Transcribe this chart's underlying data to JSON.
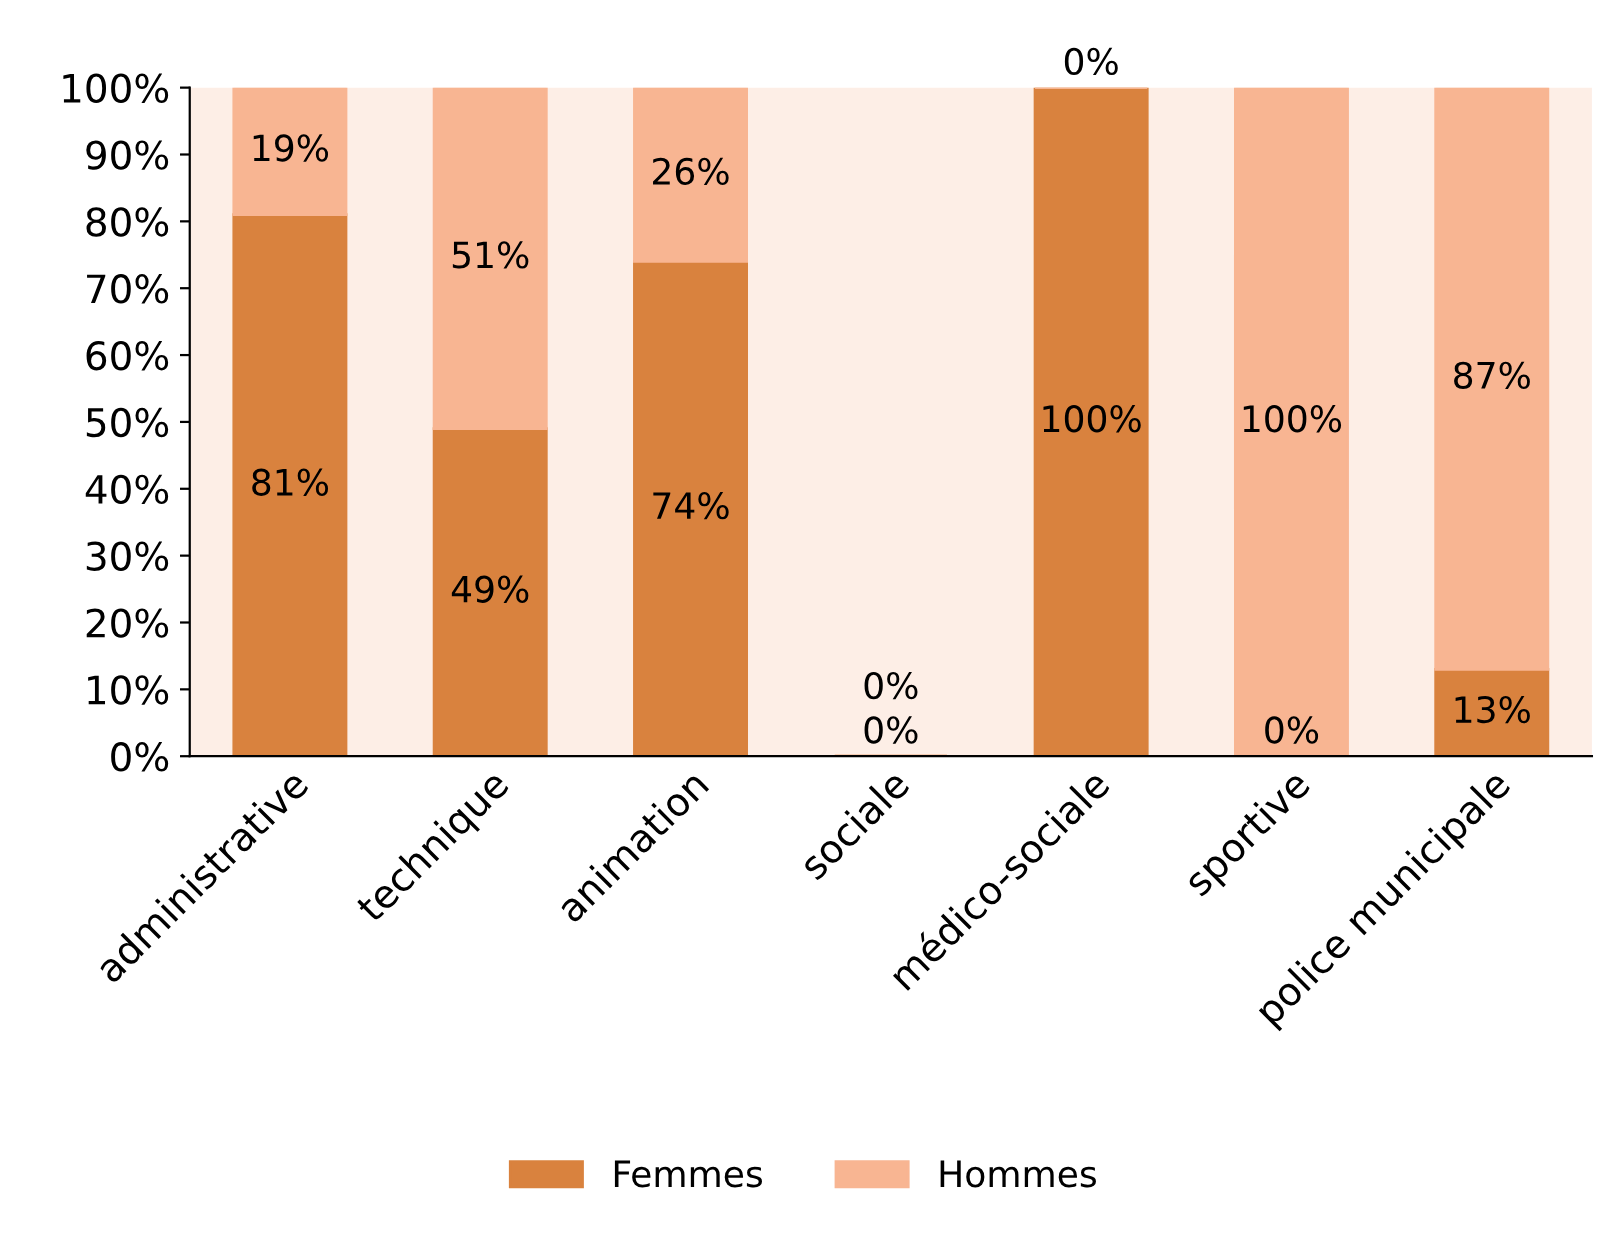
{
  "chart_data": {
    "type": "bar",
    "stacked": true,
    "categories": [
      "administrative",
      "technique",
      "animation",
      "sociale",
      "médico-sociale",
      "sportive",
      "police municipale"
    ],
    "series": [
      {
        "name": "Femmes",
        "color": "#d9823e",
        "values": [
          81,
          49,
          74,
          0,
          100,
          0,
          13
        ],
        "value_labels": [
          "81%",
          "49%",
          "74%",
          "0%",
          "100%",
          "0%",
          "13%"
        ]
      },
      {
        "name": "Hommes",
        "color": "#f8b592",
        "values": [
          19,
          51,
          26,
          0,
          0,
          100,
          87
        ],
        "value_labels": [
          "19%",
          "51%",
          "26%",
          "0%",
          "0%",
          "100%",
          "87%"
        ]
      }
    ],
    "ylim": [
      0,
      100
    ],
    "yticks": [
      {
        "value": 0,
        "label": "0%"
      },
      {
        "value": 10,
        "label": "10%"
      },
      {
        "value": 20,
        "label": "20%"
      },
      {
        "value": 30,
        "label": "30%"
      },
      {
        "value": 40,
        "label": "40%"
      },
      {
        "value": 50,
        "label": "50%"
      },
      {
        "value": 60,
        "label": "60%"
      },
      {
        "value": 70,
        "label": "70%"
      },
      {
        "value": 80,
        "label": "80%"
      },
      {
        "value": 90,
        "label": "90%"
      },
      {
        "value": 100,
        "label": "100%"
      }
    ],
    "grid": false,
    "legend": "bottom"
  }
}
